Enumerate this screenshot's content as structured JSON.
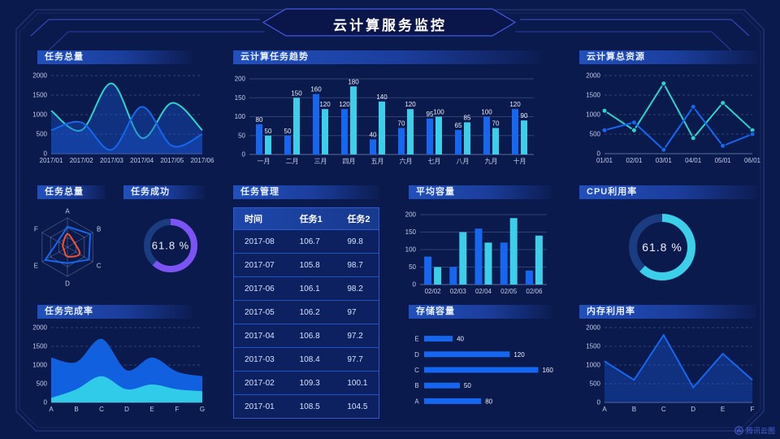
{
  "title": "云计算服务监控",
  "watermark": "腾讯云图",
  "colors": {
    "background": "#0b1a4c",
    "frame": "#26387e",
    "accent": "#4659e0",
    "blue": "#1567f0",
    "cyan": "#3bcfe9",
    "teal": "#2ed3cb",
    "purple": "#7c53f4",
    "orange": "#f4502c",
    "area_blue": "#1160e0",
    "area_cyan": "#30cbe8",
    "gauge_track": "#1a3c80",
    "axis_text": "#c2cdea",
    "table_border": "#2e5ad0"
  },
  "panels": {
    "tasks_total_top": {
      "title": "任务总量"
    },
    "cloud_task_trend": {
      "title": "云计算任务趋势"
    },
    "cloud_total_resources": {
      "title": "云计算总资源"
    },
    "tasks_total_radar": {
      "title": "任务总量"
    },
    "task_success": {
      "title": "任务成功"
    },
    "task_management": {
      "title": "任务管理"
    },
    "avg_capacity": {
      "title": "平均容量"
    },
    "cpu_utilization": {
      "title": "CPU利用率"
    },
    "task_completion": {
      "title": "任务完成率"
    },
    "storage_capacity": {
      "title": "存储容量"
    },
    "memory_utilization": {
      "title": "内存利用率"
    }
  },
  "chart_data": [
    {
      "id": "tasks-total-line",
      "type": "line",
      "title": "任务总量",
      "smooth": true,
      "area": true,
      "markers": false,
      "x": [
        "2017/01",
        "2017/02",
        "2017/03",
        "2017/04",
        "2017/05",
        "2017/06"
      ],
      "ylim": [
        0,
        2000
      ],
      "yticks": [
        0,
        500,
        1000,
        1500,
        2000
      ],
      "series": [
        {
          "name": "series-a",
          "color": "teal",
          "values": [
            1100,
            600,
            1800,
            400,
            1300,
            600
          ]
        },
        {
          "name": "series-b",
          "color": "blue",
          "values": [
            600,
            800,
            100,
            1200,
            200,
            500
          ]
        }
      ]
    },
    {
      "id": "cloud-task-trend",
      "type": "bar",
      "title": "云计算任务趋势",
      "value_labels": true,
      "x": [
        "一月",
        "二月",
        "三月",
        "四月",
        "五月",
        "六月",
        "七月",
        "八月",
        "九月",
        "十月"
      ],
      "ylim": [
        0,
        200
      ],
      "yticks": [
        0,
        50,
        100,
        150,
        200
      ],
      "series": [
        {
          "name": "series-a",
          "color": "blue",
          "values": [
            80,
            50,
            160,
            120,
            40,
            70,
            95,
            65,
            100,
            120
          ]
        },
        {
          "name": "series-b",
          "color": "cyan",
          "values": [
            50,
            150,
            120,
            180,
            140,
            120,
            100,
            85,
            70,
            90
          ]
        }
      ]
    },
    {
      "id": "cloud-total-resources",
      "type": "line",
      "title": "云计算总资源",
      "smooth": false,
      "area": false,
      "markers": true,
      "x": [
        "01/01",
        "02/01",
        "03/01",
        "04/01",
        "05/01",
        "06/01"
      ],
      "ylim": [
        0,
        2000
      ],
      "yticks": [
        0,
        500,
        1000,
        1500,
        2000
      ],
      "series": [
        {
          "name": "series-a",
          "color": "teal",
          "values": [
            1100,
            600,
            1800,
            400,
            1300,
            600
          ]
        },
        {
          "name": "series-b",
          "color": "blue",
          "values": [
            600,
            800,
            100,
            1200,
            200,
            500
          ]
        }
      ]
    },
    {
      "id": "tasks-total-radar",
      "type": "radar",
      "title": "任务总量",
      "axes": [
        "A",
        "B",
        "C",
        "D",
        "E",
        "F"
      ],
      "max": 100,
      "series": [
        {
          "name": "outer",
          "color": "blue",
          "smooth": false,
          "values": [
            70,
            90,
            85,
            55,
            88,
            38
          ]
        },
        {
          "name": "inner",
          "color": "orange",
          "smooth": true,
          "values": [
            45,
            28,
            48,
            32,
            14,
            18
          ]
        }
      ]
    },
    {
      "id": "task-success-gauge",
      "type": "donut",
      "title": "任务成功",
      "value": 61.8,
      "label": "61.8 %",
      "color": "purple"
    },
    {
      "id": "task-table",
      "type": "table",
      "title": "任务管理",
      "headers": [
        "时间",
        "任务1",
        "任务2"
      ],
      "rows": [
        [
          "2017-08",
          "106.7",
          "99.8"
        ],
        [
          "2017-07",
          "105.8",
          "98.7"
        ],
        [
          "2017-06",
          "106.1",
          "98.2"
        ],
        [
          "2017-05",
          "106.2",
          "97"
        ],
        [
          "2017-04",
          "106.8",
          "97.2"
        ],
        [
          "2017-03",
          "108.4",
          "97.7"
        ],
        [
          "2017-02",
          "109.3",
          "100.1"
        ],
        [
          "2017-01",
          "108.5",
          "104.5"
        ]
      ]
    },
    {
      "id": "avg-capacity",
      "type": "bar",
      "title": "平均容量",
      "value_labels": false,
      "x": [
        "02/02",
        "02/03",
        "02/04",
        "02/05",
        "02/06"
      ],
      "ylim": [
        0,
        200
      ],
      "yticks": [
        0,
        50,
        100,
        150,
        200
      ],
      "series": [
        {
          "name": "series-a",
          "color": "blue",
          "values": [
            80,
            50,
            160,
            120,
            40
          ]
        },
        {
          "name": "series-b",
          "color": "cyan",
          "values": [
            50,
            150,
            120,
            190,
            140
          ]
        }
      ]
    },
    {
      "id": "cpu-gauge",
      "type": "donut",
      "title": "CPU利用率",
      "value": 61.8,
      "label": "61.8 %",
      "color": "cyan"
    },
    {
      "id": "task-completion",
      "type": "area-stack",
      "title": "任务完成率",
      "smooth": true,
      "x": [
        "A",
        "B",
        "C",
        "D",
        "E",
        "F",
        "G"
      ],
      "ylim": [
        0,
        2000
      ],
      "yticks": [
        0,
        500,
        1000,
        1500,
        2000
      ],
      "series": [
        {
          "name": "layer-blue",
          "color": "area_blue",
          "values": [
            1200,
            1080,
            1700,
            860,
            1200,
            820,
            700
          ]
        },
        {
          "name": "layer-cyan",
          "color": "area_cyan",
          "values": [
            120,
            350,
            700,
            350,
            480,
            350,
            300
          ]
        }
      ]
    },
    {
      "id": "storage-capacity",
      "type": "hbar",
      "title": "存储容量",
      "categories": [
        "E",
        "D",
        "C",
        "B",
        "A"
      ],
      "values": [
        40,
        120,
        160,
        50,
        80
      ],
      "xlim": [
        0,
        180
      ]
    },
    {
      "id": "memory-utilization",
      "type": "line",
      "title": "内存利用率",
      "smooth": false,
      "area": true,
      "markers": false,
      "x": [
        "A",
        "B",
        "C",
        "D",
        "E",
        "F"
      ],
      "ylim": [
        0,
        2000
      ],
      "yticks": [
        0,
        500,
        1000,
        1500,
        2000
      ],
      "series": [
        {
          "name": "series-a",
          "color": "blue",
          "values": [
            1100,
            600,
            1800,
            400,
            1300,
            600
          ]
        }
      ]
    }
  ]
}
